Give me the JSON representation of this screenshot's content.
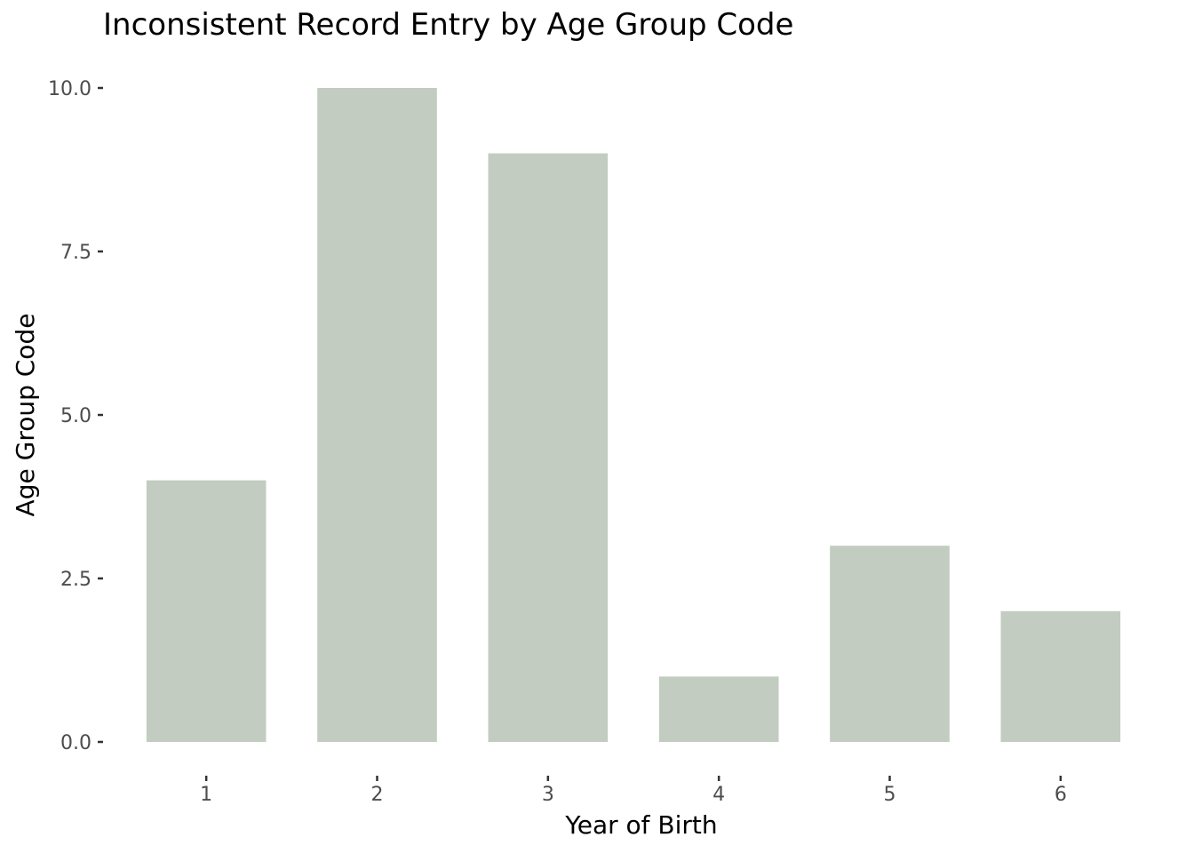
{
  "chart_data": {
    "type": "bar",
    "title": "Inconsistent Record Entry by Age Group Code",
    "xlabel": "Year of Birth",
    "ylabel": "Age Group Code",
    "categories": [
      "1",
      "2",
      "3",
      "4",
      "5",
      "6"
    ],
    "values": [
      4,
      10,
      9,
      1,
      3,
      2
    ],
    "ylim": [
      0,
      10
    ],
    "yticks": [
      "0.0",
      "2.5",
      "5.0",
      "7.5",
      "10.0"
    ],
    "grid": false,
    "bar_color": "#c2ccc1",
    "tick_color": "#333333"
  }
}
